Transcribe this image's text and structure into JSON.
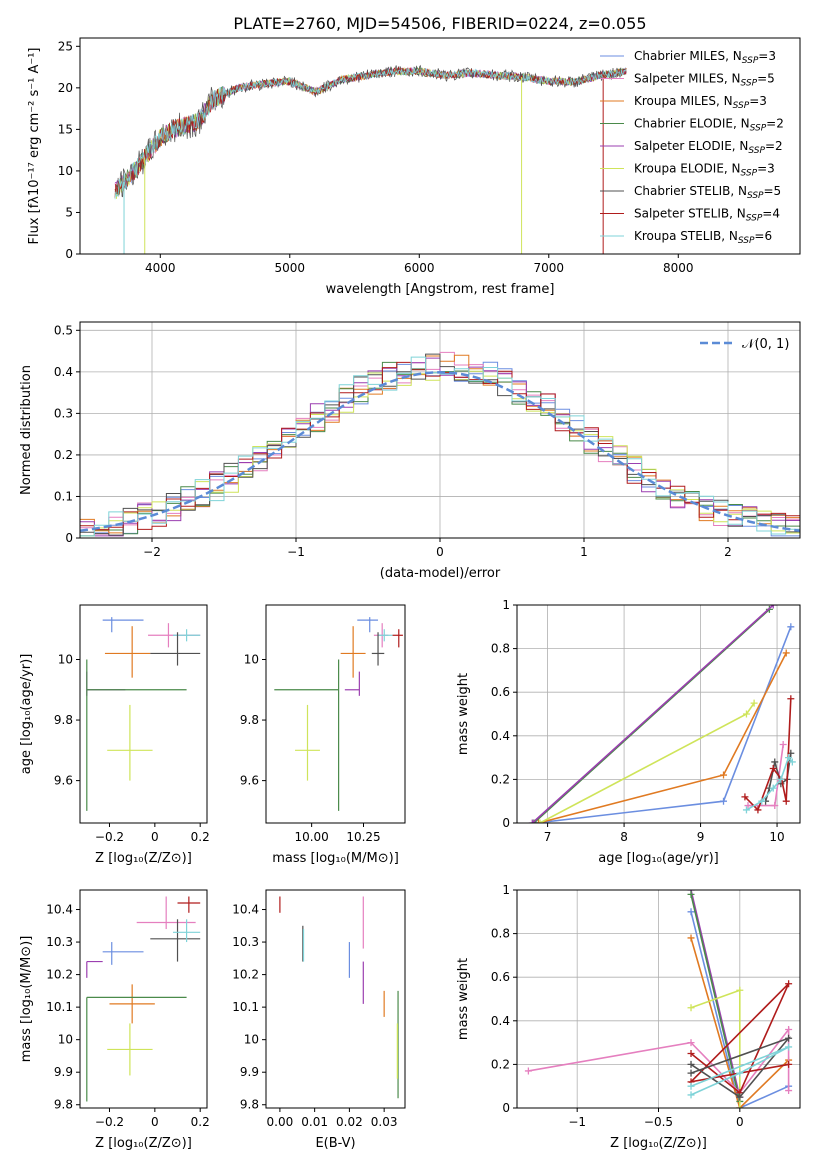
{
  "figure": {
    "title": "PLATE=2760, MJD=54506, FIBERID=0224, z=0.055"
  },
  "series_colors": {
    "Chabrier MILES": "#6b8ee0",
    "Salpeter MILES": "#e57fbf",
    "Kroupa MILES": "#e07a22",
    "Chabrier ELODIE": "#4a8a4a",
    "Salpeter ELODIE": "#9b3fb0",
    "Kroupa ELODIE": "#cfe45a",
    "Chabrier STELIB": "#505050",
    "Salpeter STELIB": "#b01c1c",
    "Kroupa STELIB": "#7fd3d8"
  },
  "chart_data": [
    {
      "id": "spectrum",
      "type": "line",
      "xlabel": "wavelength [Angstrom, rest frame]",
      "ylabel": "Flux [fλ10⁻¹⁷ erg cm⁻² s⁻¹ A⁻¹]",
      "xlim": [
        3380,
        8940
      ],
      "ylim": [
        0,
        26
      ],
      "xticks": [
        4000,
        5000,
        6000,
        7000,
        8000
      ],
      "yticks": [
        0,
        5,
        10,
        15,
        20,
        25
      ],
      "legend_position": "right",
      "legend": [
        "Chabrier MILES, N_SSP=3",
        "Salpeter MILES, N_SSP=5",
        "Kroupa MILES, N_SSP=3",
        "Chabrier ELODIE, N_SSP=2",
        "Salpeter ELODIE, N_SSP=2",
        "Kroupa ELODIE, N_SSP=3",
        "Chabrier STELIB, N_SSP=5",
        "Salpeter STELIB, N_SSP=4",
        "Kroupa STELIB, N_SSP=6"
      ],
      "continuum": {
        "x": [
          3650,
          3800,
          3900,
          4000,
          4100,
          4200,
          4300,
          4400,
          4600,
          4800,
          5000,
          5200,
          5400,
          5600,
          5800,
          6000,
          6200,
          6400,
          6600,
          6800,
          7000,
          7200,
          7400,
          7600
        ],
        "y": [
          7.5,
          10,
          12,
          14,
          15,
          15.5,
          16,
          18.5,
          20,
          20.5,
          20.8,
          19.5,
          21,
          21.5,
          22,
          22,
          21.5,
          21.8,
          21.5,
          21.3,
          20.8,
          20.7,
          21.5,
          22
        ]
      },
      "drops": [
        {
          "series": "Kroupa STELIB",
          "x": 3720,
          "y": 0
        },
        {
          "series": "Kroupa ELODIE",
          "x": 3880,
          "y": 0
        },
        {
          "series": "Kroupa ELODIE",
          "x": 6790,
          "y": 0
        },
        {
          "series": "Salpeter STELIB",
          "x": 7420,
          "y": 0
        }
      ]
    },
    {
      "id": "residuals",
      "type": "histogram",
      "xlabel": "(data-model)/error",
      "ylabel": "Normed distribution",
      "xlim": [
        -2.5,
        2.5
      ],
      "ylim": [
        0,
        0.52
      ],
      "xticks": [
        -2,
        -1,
        0,
        1,
        2
      ],
      "yticks": [
        0.0,
        0.1,
        0.2,
        0.3,
        0.4,
        0.5
      ],
      "grid": true,
      "legend": [
        "𝒩(0, 1)"
      ],
      "legend_position": "top-right",
      "reference": {
        "name": "𝒩(0, 1)",
        "mean": 0,
        "sigma": 1,
        "color": "#5b8bd6"
      },
      "bin_width": 0.1
    },
    {
      "id": "age_vs_Z",
      "type": "scatter",
      "xlabel": "Z [log₁₀(Z/Z⊙)]",
      "ylabel": "age  [log₁₀(age/yr)]",
      "xlim": [
        -0.33,
        0.23
      ],
      "ylim": [
        9.46,
        10.18
      ],
      "xticks": [
        -0.2,
        0.0,
        0.2
      ],
      "yticks": [
        9.6,
        9.8,
        10.0
      ],
      "points": [
        {
          "series": "Chabrier MILES",
          "x": -0.19,
          "y": 10.13,
          "xerr": [
            0.04,
            0.14
          ],
          "yerr": [
            0.04,
            0.01
          ]
        },
        {
          "series": "Kroupa MILES",
          "x": -0.1,
          "y": 10.02,
          "xerr": [
            0.12,
            0.08
          ],
          "yerr": [
            0.08,
            0.09
          ]
        },
        {
          "series": "Salpeter MILES",
          "x": 0.06,
          "y": 10.08,
          "xerr": [
            0.09,
            0.14
          ],
          "yerr": [
            0.04,
            0.04
          ]
        },
        {
          "series": "Kroupa STELIB",
          "x": 0.14,
          "y": 10.08,
          "xerr": [
            0.06,
            0.06
          ],
          "yerr": [
            0.02,
            0.02
          ]
        },
        {
          "series": "Chabrier STELIB",
          "x": 0.1,
          "y": 10.02,
          "xerr": [
            0.12,
            0.1
          ],
          "yerr": [
            0.04,
            0.07
          ]
        },
        {
          "series": "Salpeter ELODIE",
          "x": -0.3,
          "y": 9.9,
          "xerr": [
            0.0,
            0.17
          ],
          "yerr": [
            0.02,
            0.06
          ]
        },
        {
          "series": "Chabrier ELODIE",
          "x": -0.3,
          "y": 9.9,
          "xerr": [
            0.0,
            0.44
          ],
          "yerr": [
            0.4,
            0.1
          ]
        },
        {
          "series": "Kroupa ELODIE",
          "x": -0.11,
          "y": 9.7,
          "xerr": [
            0.1,
            0.1
          ],
          "yerr": [
            0.1,
            0.15
          ]
        }
      ]
    },
    {
      "id": "age_vs_mass",
      "type": "scatter",
      "xlabel": "mass [log₁₀(M/M⊙)]",
      "xlim": [
        9.78,
        10.45
      ],
      "ylim": [
        9.46,
        10.18
      ],
      "xticks": [
        10.0,
        10.25
      ],
      "xtick_labels": [
        "10.00",
        "10.25"
      ],
      "yticks": [
        9.6,
        9.8,
        10.0
      ],
      "points": [
        {
          "series": "Chabrier MILES",
          "x": 10.28,
          "y": 10.13,
          "xerr": [
            0.06,
            0.04
          ],
          "yerr": [
            0.04,
            0.01
          ]
        },
        {
          "series": "Kroupa MILES",
          "x": 10.2,
          "y": 10.02,
          "xerr": [
            0.06,
            0.06
          ],
          "yerr": [
            0.08,
            0.09
          ]
        },
        {
          "series": "Salpeter MILES",
          "x": 10.34,
          "y": 10.08,
          "xerr": [
            0.04,
            0.03
          ],
          "yerr": [
            0.04,
            0.04
          ]
        },
        {
          "series": "Kroupa STELIB",
          "x": 10.35,
          "y": 10.08,
          "xerr": [
            0.03,
            0.04
          ],
          "yerr": [
            0.02,
            0.02
          ]
        },
        {
          "series": "Chabrier STELIB",
          "x": 10.32,
          "y": 10.02,
          "xerr": [
            0.03,
            0.03
          ],
          "yerr": [
            0.04,
            0.07
          ]
        },
        {
          "series": "Salpeter STELIB",
          "x": 10.42,
          "y": 10.08,
          "xerr": [
            0.03,
            0.02
          ],
          "yerr": [
            0.04,
            0.02
          ]
        },
        {
          "series": "Salpeter ELODIE",
          "x": 10.23,
          "y": 9.9,
          "xerr": [
            0.07,
            0.0
          ],
          "yerr": [
            0.02,
            0.06
          ]
        },
        {
          "series": "Chabrier ELODIE",
          "x": 10.13,
          "y": 9.9,
          "xerr": [
            0.31,
            0.0
          ],
          "yerr": [
            0.4,
            0.1
          ]
        },
        {
          "series": "Kroupa ELODIE",
          "x": 9.98,
          "y": 9.7,
          "xerr": [
            0.06,
            0.06
          ],
          "yerr": [
            0.1,
            0.15
          ]
        }
      ]
    },
    {
      "id": "weight_vs_age",
      "type": "line",
      "xlabel": "age  [log₁₀(age/yr)]",
      "ylabel": "mass weight",
      "xlim": [
        6.6,
        10.3
      ],
      "ylim": [
        0,
        1.0
      ],
      "xticks": [
        7,
        8,
        9,
        10
      ],
      "yticks": [
        0.0,
        0.2,
        0.4,
        0.6,
        0.8,
        1.0
      ],
      "grid": true,
      "series": [
        {
          "name": "Chabrier MILES",
          "x": [
            10.18,
            9.3,
            6.85
          ],
          "y": [
            0.9,
            0.1,
            0.0
          ]
        },
        {
          "name": "Kroupa MILES",
          "x": [
            10.12,
            9.3,
            6.88
          ],
          "y": [
            0.78,
            0.22,
            0.0
          ]
        },
        {
          "name": "Chabrier ELODIE",
          "x": [
            9.9,
            6.82
          ],
          "y": [
            0.98,
            0.0
          ]
        },
        {
          "name": "Salpeter ELODIE",
          "x": [
            9.95,
            6.8
          ],
          "y": [
            1.0,
            0.0
          ]
        },
        {
          "name": "Kroupa ELODIE",
          "x": [
            9.7,
            9.6,
            6.9
          ],
          "y": [
            0.55,
            0.5,
            0.0
          ]
        },
        {
          "name": "Salpeter MILES",
          "x": [
            10.08,
            9.97,
            9.62
          ],
          "y": [
            0.36,
            0.08,
            0.08
          ]
        },
        {
          "name": "Chabrier STELIB",
          "x": [
            10.18,
            10.13,
            10.05,
            9.97,
            9.9,
            9.85
          ],
          "y": [
            0.32,
            0.2,
            0.18,
            0.28,
            0.16,
            0.1
          ]
        },
        {
          "name": "Salpeter STELIB",
          "x": [
            10.18,
            10.12,
            10.06,
            9.95,
            9.75,
            9.58
          ],
          "y": [
            0.57,
            0.1,
            0.2,
            0.25,
            0.06,
            0.12
          ]
        },
        {
          "name": "Kroupa STELIB",
          "x": [
            10.2,
            10.15,
            10.05,
            9.95,
            9.8,
            9.6
          ],
          "y": [
            0.28,
            0.3,
            0.2,
            0.16,
            0.1,
            0.06
          ]
        }
      ]
    },
    {
      "id": "mass_vs_Z",
      "type": "scatter",
      "xlabel": "Z [log₁₀(Z/Z⊙)]",
      "ylabel": "mass [log₁₀(M/M⊙)]",
      "xlim": [
        -0.33,
        0.23
      ],
      "ylim": [
        9.79,
        10.46
      ],
      "xticks": [
        -0.2,
        0.0,
        0.2
      ],
      "yticks": [
        9.8,
        9.9,
        10.0,
        10.1,
        10.2,
        10.3,
        10.4
      ],
      "points": [
        {
          "series": "Salpeter STELIB",
          "x": 0.15,
          "y": 10.42,
          "xerr": [
            0.05,
            0.05
          ],
          "yerr": [
            0.03,
            0.02
          ]
        },
        {
          "series": "Salpeter MILES",
          "x": 0.05,
          "y": 10.36,
          "xerr": [
            0.13,
            0.13
          ],
          "yerr": [
            0.02,
            0.08
          ]
        },
        {
          "series": "Chabrier STELIB",
          "x": 0.1,
          "y": 10.31,
          "xerr": [
            0.12,
            0.1
          ],
          "yerr": [
            0.07,
            0.06
          ]
        },
        {
          "series": "Kroupa STELIB",
          "x": 0.14,
          "y": 10.33,
          "xerr": [
            0.06,
            0.06
          ],
          "yerr": [
            0.03,
            0.04
          ]
        },
        {
          "series": "Chabrier MILES",
          "x": -0.19,
          "y": 10.27,
          "xerr": [
            0.04,
            0.14
          ],
          "yerr": [
            0.04,
            0.03
          ]
        },
        {
          "series": "Salpeter ELODIE",
          "x": -0.3,
          "y": 10.24,
          "xerr": [
            0.0,
            0.07
          ],
          "yerr": [
            0.05,
            0.0
          ]
        },
        {
          "series": "Kroupa MILES",
          "x": -0.1,
          "y": 10.11,
          "xerr": [
            0.1,
            0.1
          ],
          "yerr": [
            0.06,
            0.06
          ]
        },
        {
          "series": "Chabrier ELODIE",
          "x": -0.3,
          "y": 10.13,
          "xerr": [
            0.0,
            0.44
          ],
          "yerr": [
            0.32,
            0.0
          ]
        },
        {
          "series": "Kroupa ELODIE",
          "x": -0.11,
          "y": 9.97,
          "xerr": [
            0.1,
            0.1
          ],
          "yerr": [
            0.08,
            0.08
          ]
        }
      ]
    },
    {
      "id": "mass_vs_ebv",
      "type": "scatter",
      "xlabel": "E(B-V)",
      "xlim": [
        -0.004,
        0.036
      ],
      "ylim": [
        9.79,
        10.46
      ],
      "xticks": [
        0.0,
        0.01,
        0.02,
        0.03
      ],
      "xtick_labels": [
        "0.00",
        "0.01",
        "0.02",
        "0.03"
      ],
      "yticks": [
        9.8,
        9.9,
        10.0,
        10.1,
        10.2,
        10.3,
        10.4
      ],
      "points": [
        {
          "series": "Salpeter STELIB",
          "x": 0.0,
          "y": 10.42,
          "xerr": [
            0,
            0
          ],
          "yerr": [
            0.03,
            0.02
          ]
        },
        {
          "series": "Chabrier STELIB",
          "x": 0.0066,
          "y": 10.31,
          "xerr": [
            0,
            0
          ],
          "yerr": [
            0.07,
            0.04
          ]
        },
        {
          "series": "Kroupa STELIB",
          "x": 0.0068,
          "y": 10.28,
          "xerr": [
            0,
            0
          ],
          "yerr": [
            0.04,
            0.06
          ]
        },
        {
          "series": "Chabrier MILES",
          "x": 0.02,
          "y": 10.25,
          "xerr": [
            0,
            0
          ],
          "yerr": [
            0.06,
            0.05
          ]
        },
        {
          "series": "Salpeter MILES",
          "x": 0.024,
          "y": 10.36,
          "xerr": [
            0,
            0
          ],
          "yerr": [
            0.08,
            0.08
          ]
        },
        {
          "series": "Salpeter ELODIE",
          "x": 0.024,
          "y": 10.16,
          "xerr": [
            0,
            0
          ],
          "yerr": [
            0.05,
            0.08
          ]
        },
        {
          "series": "Kroupa MILES",
          "x": 0.03,
          "y": 10.11,
          "xerr": [
            0,
            0
          ],
          "yerr": [
            0.04,
            0.04
          ]
        },
        {
          "series": "Chabrier ELODIE",
          "x": 0.034,
          "y": 9.98,
          "xerr": [
            0,
            0
          ],
          "yerr": [
            0.16,
            0.17
          ]
        },
        {
          "series": "Kroupa ELODIE",
          "x": 0.0338,
          "y": 9.93,
          "xerr": [
            0,
            0
          ],
          "yerr": [
            0.05,
            0.12
          ]
        }
      ]
    },
    {
      "id": "weight_vs_Z",
      "type": "line",
      "xlabel": "Z [log₁₀(Z/Z⊙)]",
      "ylabel": "mass weight",
      "xlim": [
        -1.37,
        0.37
      ],
      "ylim": [
        0,
        1.0
      ],
      "xticks": [
        -1.0,
        -0.5,
        0.0
      ],
      "yticks": [
        0.0,
        0.2,
        0.4,
        0.6,
        0.8,
        1.0
      ],
      "grid": true,
      "series": [
        {
          "name": "Chabrier MILES",
          "x": [
            -0.3,
            0.0,
            0.3
          ],
          "y": [
            0.9,
            0.0,
            0.1
          ]
        },
        {
          "name": "Kroupa MILES",
          "x": [
            -0.3,
            0.0,
            0.3
          ],
          "y": [
            0.78,
            0.0,
            0.22
          ]
        },
        {
          "name": "Salpeter ELODIE",
          "x": [
            -0.3,
            0.0
          ],
          "y": [
            1.0,
            0.05
          ]
        },
        {
          "name": "Chabrier ELODIE",
          "x": [
            -0.3,
            0.0
          ],
          "y": [
            0.98,
            0.03
          ]
        },
        {
          "name": "Kroupa ELODIE",
          "x": [
            -0.3,
            0.0,
            0.0
          ],
          "y": [
            0.46,
            0.54,
            0.0
          ]
        },
        {
          "name": "Salpeter MILES",
          "x": [
            -1.3,
            -0.3,
            0.0,
            0.3,
            0.3
          ],
          "y": [
            0.17,
            0.3,
            0.07,
            0.36,
            0.08
          ]
        },
        {
          "name": "Salpeter STELIB",
          "x": [
            -0.3,
            0.0,
            0.3,
            -0.3,
            0.3
          ],
          "y": [
            0.25,
            0.07,
            0.57,
            0.12,
            0.2
          ]
        },
        {
          "name": "Chabrier STELIB",
          "x": [
            -0.3,
            0.0,
            0.3,
            -0.3
          ],
          "y": [
            0.2,
            0.05,
            0.32,
            0.16
          ]
        },
        {
          "name": "Kroupa STELIB",
          "x": [
            -0.3,
            0.0,
            0.3,
            -0.3
          ],
          "y": [
            0.06,
            0.16,
            0.28,
            0.1
          ]
        }
      ]
    }
  ]
}
